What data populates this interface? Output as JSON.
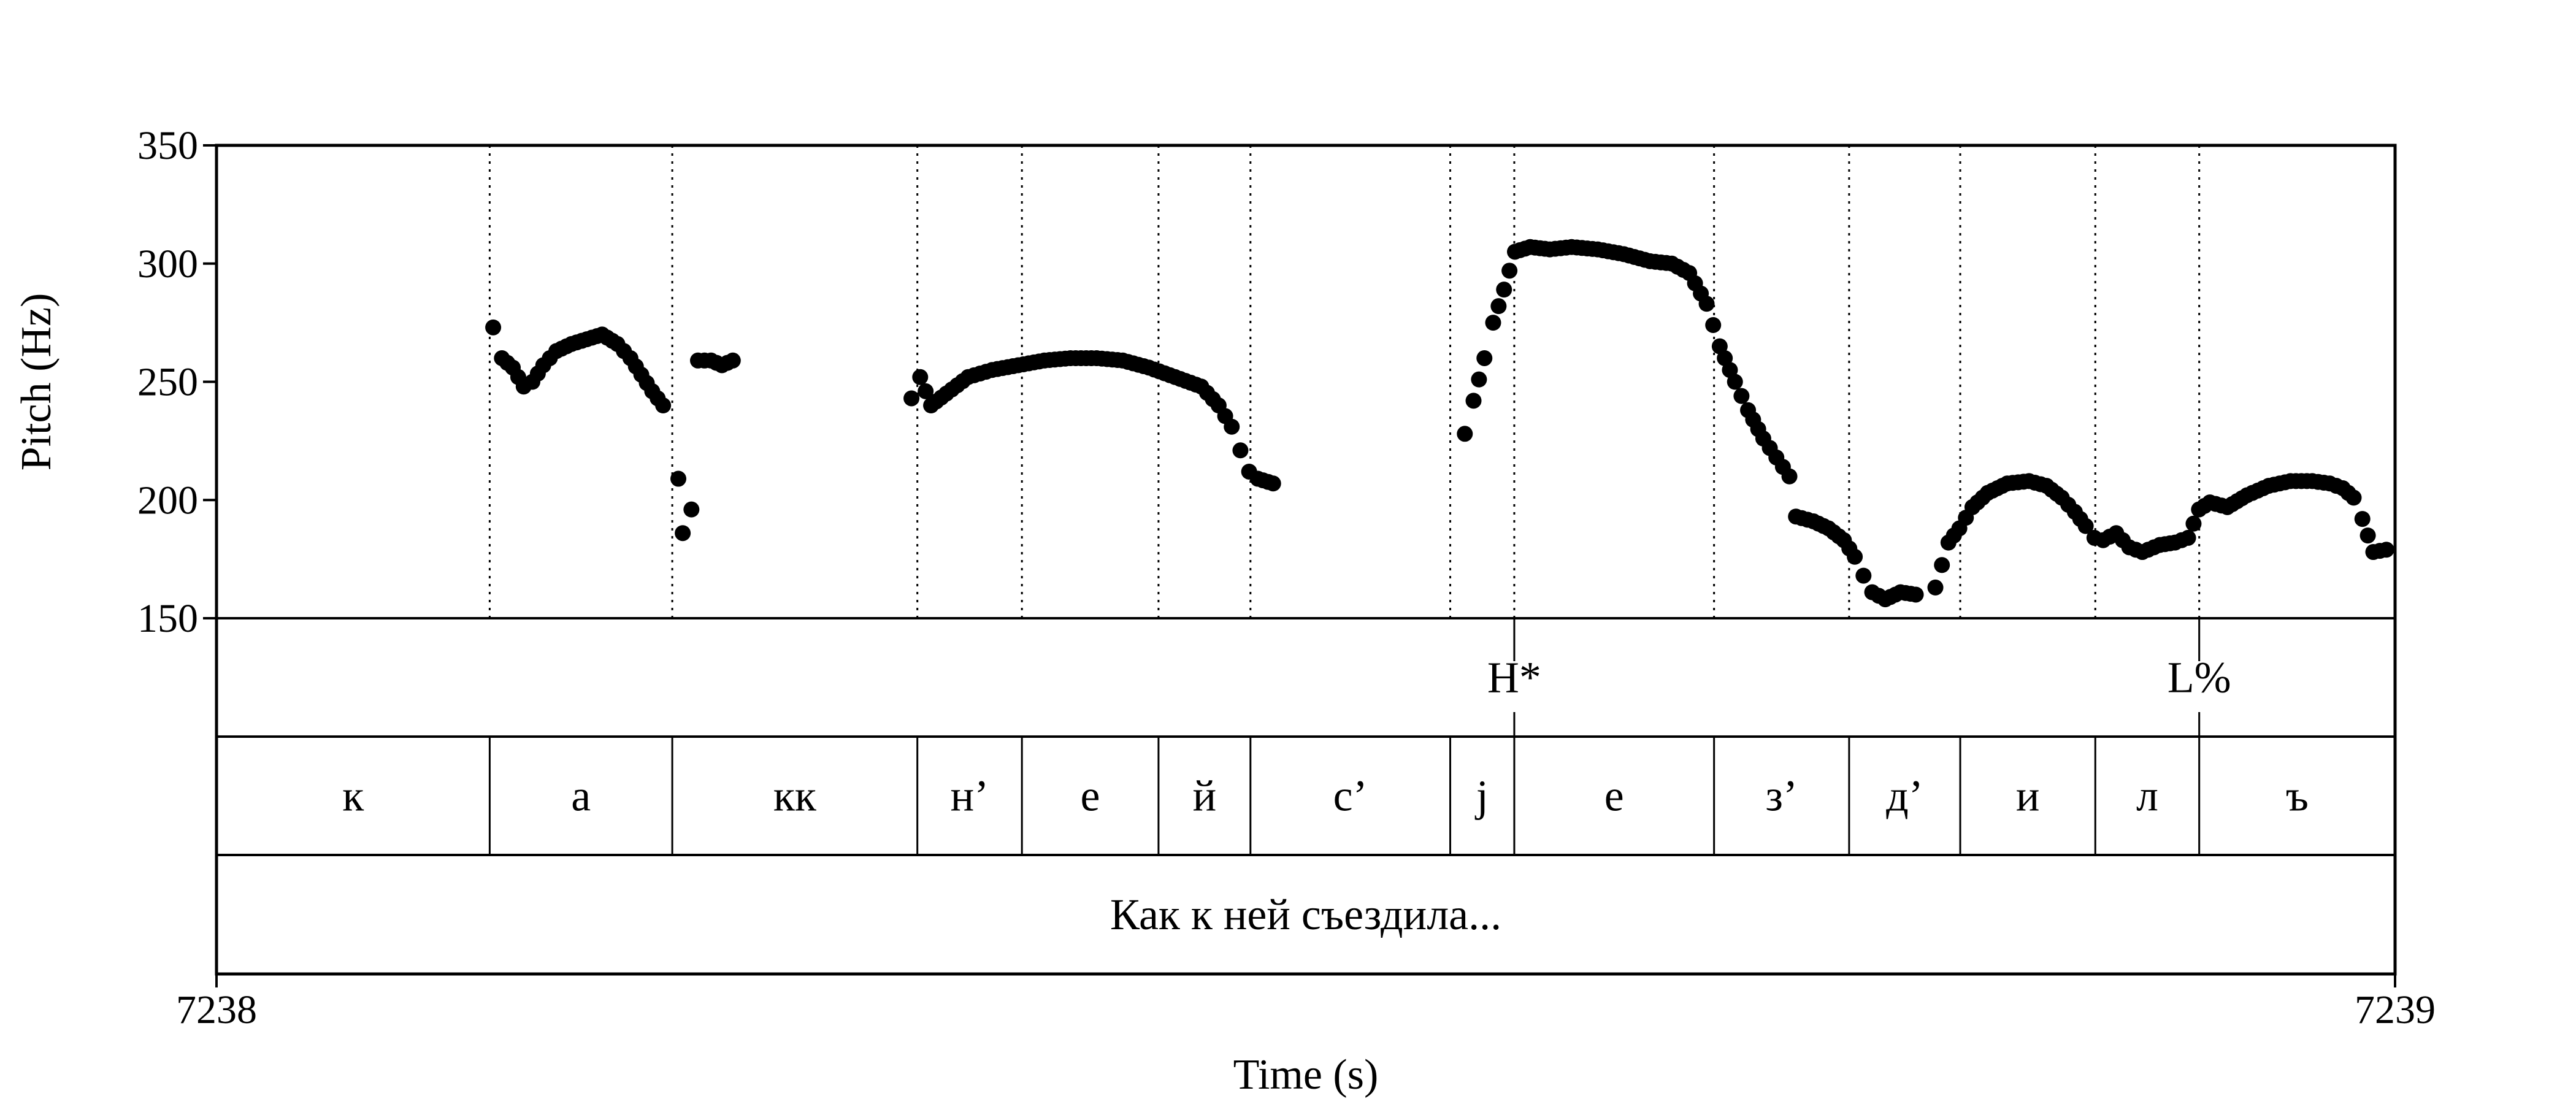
{
  "chart_data": {
    "type": "scatter",
    "xlabel": "Time (s)",
    "ylabel": "Pitch (Hz)",
    "xlim": [
      7238,
      7239
    ],
    "ylim": [
      150,
      350
    ],
    "x_tick_labels": [
      "7238",
      "7239"
    ],
    "y_ticks": [
      150,
      200,
      250,
      300,
      350
    ],
    "y_tick_labels": [
      "150",
      "200",
      "250",
      "300",
      "350"
    ],
    "grid": "vertical dotted lines at segment boundaries",
    "point_color": "#000000",
    "tones": [
      {
        "label": "H*",
        "t": 7238.5957
      },
      {
        "label": "L%",
        "t": 7238.9101
      }
    ],
    "segments": [
      {
        "label": "к",
        "start": 7238.0,
        "end": 7238.1254
      },
      {
        "label": "а",
        "start": 7238.1254,
        "end": 7238.2092
      },
      {
        "label": "кк",
        "start": 7238.2092,
        "end": 7238.3217
      },
      {
        "label": "н’",
        "start": 7238.3217,
        "end": 7238.3697
      },
      {
        "label": "е",
        "start": 7238.3697,
        "end": 7238.4324
      },
      {
        "label": "й",
        "start": 7238.4324,
        "end": 7238.4746
      },
      {
        "label": "с’",
        "start": 7238.4746,
        "end": 7238.5663
      },
      {
        "label": "j",
        "start": 7238.5663,
        "end": 7238.5957
      },
      {
        "label": "е",
        "start": 7238.5957,
        "end": 7238.6874
      },
      {
        "label": "з’",
        "start": 7238.6874,
        "end": 7238.7494
      },
      {
        "label": "д’",
        "start": 7238.7494,
        "end": 7238.8004
      },
      {
        "label": "и",
        "start": 7238.8004,
        "end": 7238.8624
      },
      {
        "label": "л",
        "start": 7238.8624,
        "end": 7238.9101
      },
      {
        "label": "ъ",
        "start": 7238.9101,
        "end": 7239.0
      }
    ],
    "utterance": {
      "label": "Как к ней съездила...",
      "start": 7238.0,
      "end": 7239.0
    },
    "pitch_contours": [
      {
        "t": [
          7238.127,
          7238.131,
          7238.136,
          7238.141,
          7238.145,
          7238.15,
          7238.156,
          7238.163,
          7238.17,
          7238.177,
          7238.184,
          7238.19,
          7238.195,
          7238.2,
          7238.205
        ],
        "hz": [
          273,
          260,
          256,
          248,
          250,
          257,
          263,
          266,
          268,
          270,
          266,
          260,
          253,
          246,
          240
        ]
      },
      {
        "t": [
          7238.212,
          7238.214,
          7238.218
        ],
        "hz": [
          209,
          186,
          196
        ]
      },
      {
        "t": [
          7238.221,
          7238.227,
          7238.232,
          7238.237
        ],
        "hz": [
          259,
          259,
          257,
          259
        ]
      },
      {
        "t": [
          7238.319,
          7238.323,
          7238.328,
          7238.335,
          7238.345,
          7238.356,
          7238.368,
          7238.38,
          7238.392,
          7238.404,
          7238.416,
          7238.428,
          7238.44,
          7238.452,
          7238.46,
          7238.466,
          7238.47,
          7238.474,
          7238.478,
          7238.485
        ],
        "hz": [
          243,
          252,
          240,
          245,
          252,
          255,
          257,
          259,
          260,
          260,
          259,
          256,
          252,
          248,
          240,
          231,
          221,
          212,
          209,
          207
        ]
      },
      {
        "t": [
          7238.573,
          7238.577,
          7238.582,
          7238.586,
          7238.591,
          7238.596,
          7238.603,
          7238.612,
          7238.622,
          7238.634,
          7238.646,
          7238.658,
          7238.668,
          7238.676,
          7238.684,
          7238.69,
          7238.697,
          7238.703,
          7238.71,
          7238.716,
          7238.722
        ],
        "hz": [
          228,
          242,
          260,
          275,
          289,
          305,
          307,
          306,
          307,
          306,
          304,
          301,
          300,
          296,
          283,
          265,
          250,
          238,
          226,
          218,
          210
        ]
      },
      {
        "t": [
          7238.725,
          7238.733,
          7238.74,
          7238.747,
          7238.752,
          7238.756,
          7238.76,
          7238.766,
          7238.773,
          7238.78
        ],
        "hz": [
          193,
          191,
          188,
          183,
          176,
          168,
          161,
          158,
          161,
          160
        ]
      },
      {
        "t": [
          7238.789,
          7238.795,
          7238.8,
          7238.806,
          7238.813,
          7238.822,
          7238.832,
          7238.84,
          7238.847,
          7238.853,
          7238.858,
          7238.862,
          7238.866,
          7238.872,
          7238.878,
          7238.884,
          7238.892,
          7238.899,
          7238.905,
          7238.91,
          7238.915,
          7238.923,
          7238.932,
          7238.942,
          7238.952,
          7238.962,
          7238.97,
          7238.976,
          7238.981,
          7238.985,
          7238.99,
          7238.996
        ],
        "hz": [
          163,
          182,
          188,
          197,
          203,
          207,
          208,
          206,
          201,
          195,
          189,
          184,
          183,
          186,
          180,
          178,
          181,
          182,
          184,
          196,
          199,
          197,
          202,
          206,
          208,
          208,
          207,
          205,
          201,
          192,
          178,
          179
        ]
      }
    ]
  }
}
